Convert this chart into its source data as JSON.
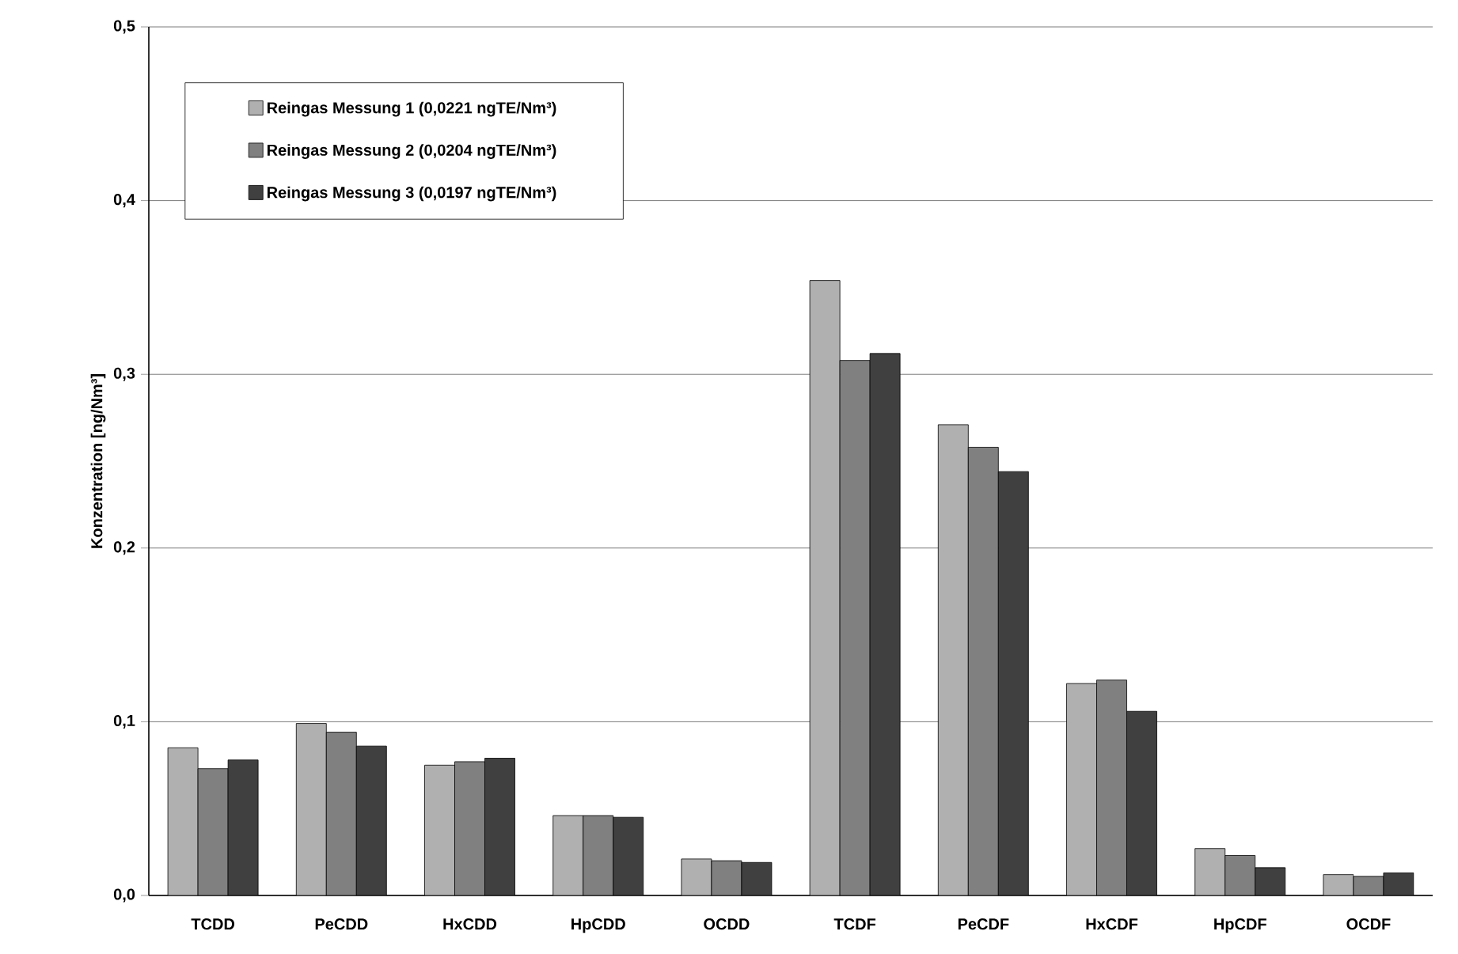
{
  "chart_data": {
    "type": "bar",
    "ylabel": "Konzentration [ng/Nm³]",
    "categories": [
      "TCDD",
      "PeCDD",
      "HxCDD",
      "HpCDD",
      "OCDD",
      "TCDF",
      "PeCDF",
      "HxCDF",
      "HpCDF",
      "OCDF"
    ],
    "series": [
      {
        "name": "Reingas Messung 1 (0,0221 ngTE/Nm³)",
        "color": "#b0b0b0",
        "values": [
          0.085,
          0.099,
          0.075,
          0.046,
          0.021,
          0.354,
          0.271,
          0.122,
          0.027,
          0.012
        ]
      },
      {
        "name": "Reingas Messung 2 (0,0204 ngTE/Nm³)",
        "color": "#808080",
        "values": [
          0.073,
          0.094,
          0.077,
          0.046,
          0.02,
          0.308,
          0.258,
          0.124,
          0.023,
          0.011
        ]
      },
      {
        "name": "Reingas Messung 3 (0,0197 ngTE/Nm³)",
        "color": "#404040",
        "values": [
          0.078,
          0.086,
          0.079,
          0.045,
          0.019,
          0.312,
          0.244,
          0.106,
          0.016,
          0.013
        ]
      }
    ],
    "ylim": [
      0,
      0.5
    ],
    "yticks": [
      {
        "value": 0,
        "label": "0,0"
      },
      {
        "value": 0.1,
        "label": "0,1"
      },
      {
        "value": 0.2,
        "label": "0,2"
      },
      {
        "value": 0.3,
        "label": "0,3"
      },
      {
        "value": 0.4,
        "label": "0,4"
      },
      {
        "value": 0.5,
        "label": "0,5"
      }
    ],
    "grid": "y",
    "legend": "top left"
  }
}
